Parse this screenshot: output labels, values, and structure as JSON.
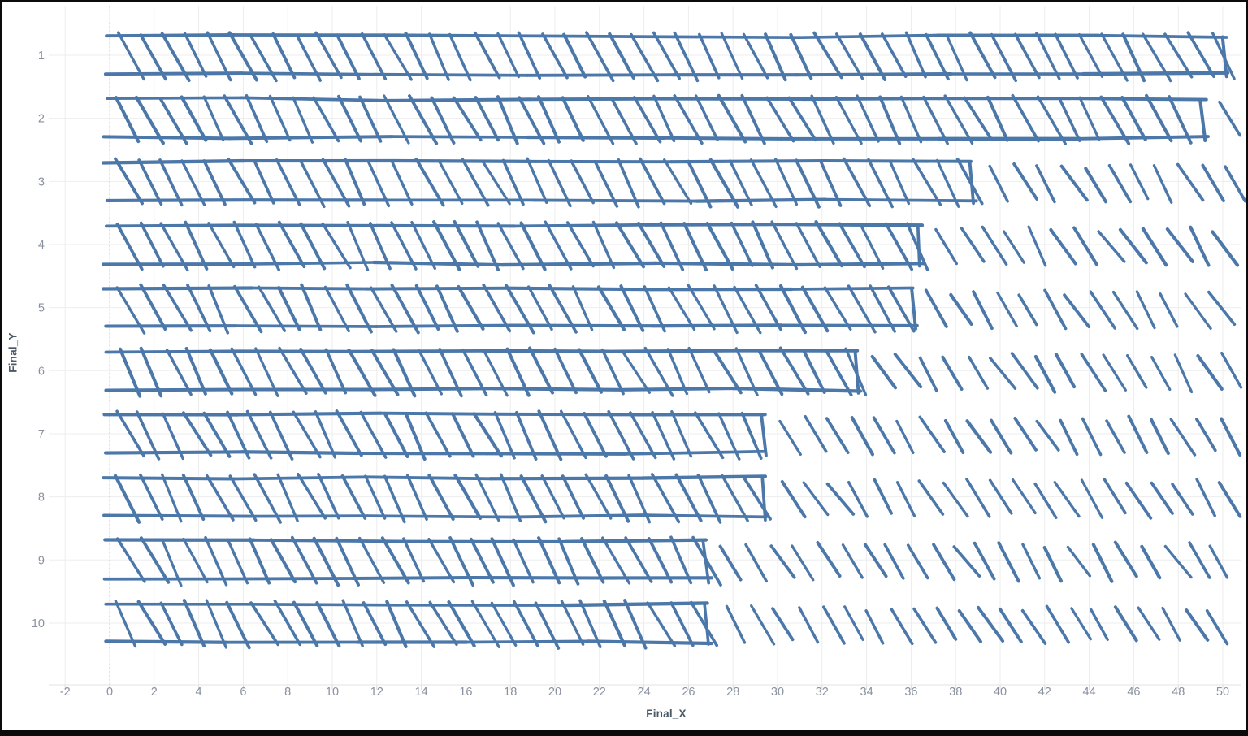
{
  "window": {
    "border_color": "#0b0b0b",
    "background": "#ffffff"
  },
  "chart_data": {
    "type": "bar",
    "orientation": "horizontal",
    "style": "sketchy-hatched-outline",
    "title": "",
    "xlabel": "Final_X",
    "ylabel": "Final_Y",
    "categories": [
      "1",
      "2",
      "3",
      "4",
      "5",
      "6",
      "7",
      "8",
      "9",
      "10"
    ],
    "values": [
      50,
      49,
      38.6,
      36.3,
      36,
      33.5,
      29.3,
      29.3,
      26.7,
      26.7
    ],
    "hatch_overflow_to": 50,
    "bars_start_at": 0,
    "x_ticks": [
      -2,
      0,
      2,
      4,
      6,
      8,
      10,
      12,
      14,
      16,
      18,
      20,
      22,
      24,
      26,
      28,
      30,
      32,
      34,
      36,
      38,
      40,
      42,
      44,
      46,
      48,
      50
    ],
    "y_ticks": [
      1,
      2,
      3,
      4,
      5,
      6,
      7,
      8,
      9,
      10
    ],
    "xlim": [
      -2.5,
      50.9
    ],
    "grid": true,
    "legend": null,
    "zero_line_style": "dotted",
    "colors": {
      "bar_stroke": "#4b77a9",
      "gridline": "#ededed",
      "axis_line": "#e3e3e3",
      "tick_mark": "#dcdcdc",
      "zero_line": "#c9c9c9",
      "tick_label": "#8a919e",
      "axis_title": "#4b5866",
      "background": "#ffffff"
    }
  }
}
